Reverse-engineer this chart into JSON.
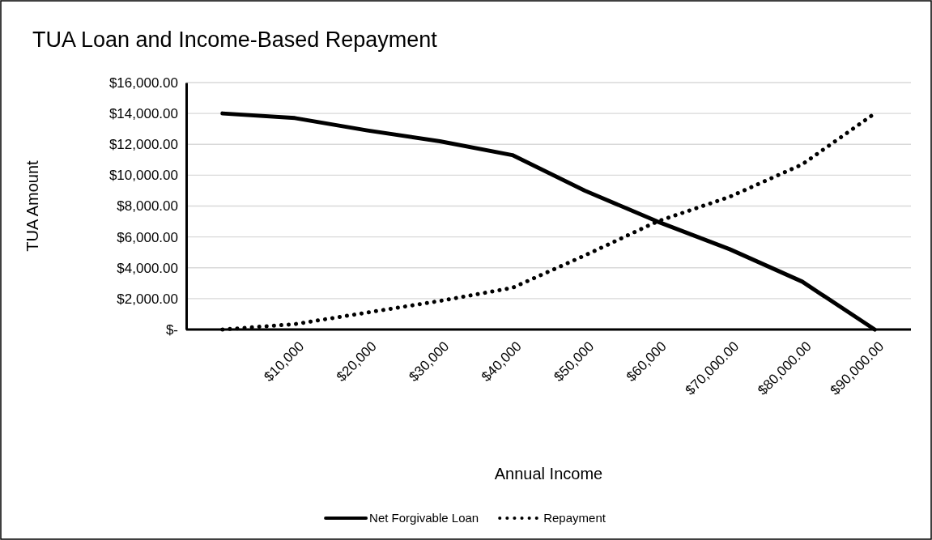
{
  "chart_data": {
    "type": "line",
    "title": "TUA Loan and Income-Based Repayment",
    "xlabel": "Annual Income",
    "ylabel": "TUA Amount",
    "categories": [
      null,
      "$10,000",
      "$20,000",
      "$30,000",
      "$40,000",
      "$50,000",
      "$60,000",
      "$70,000.00",
      "$80,000.00",
      "$90,000.00"
    ],
    "series": [
      {
        "name": "Net Forgivable Loan",
        "color": "#000000",
        "line_style": "solid",
        "values": [
          14000,
          13700,
          12900,
          12200,
          11300,
          9000,
          7000,
          5200,
          3100,
          0
        ]
      },
      {
        "name": "Repayment",
        "color": "#000000",
        "line_style": "dotted",
        "values": [
          0,
          350,
          1100,
          1850,
          2700,
          4800,
          7000,
          8600,
          10700,
          14000
        ]
      }
    ],
    "ylim": [
      0,
      16000
    ],
    "yticks": [
      {
        "value": 0,
        "label": "$-"
      },
      {
        "value": 2000,
        "label": "$2,000.00"
      },
      {
        "value": 4000,
        "label": "$4,000.00"
      },
      {
        "value": 6000,
        "label": "$6,000.00"
      },
      {
        "value": 8000,
        "label": "$8,000.00"
      },
      {
        "value": 10000,
        "label": "$10,000.00"
      },
      {
        "value": 12000,
        "label": "$12,000.00"
      },
      {
        "value": 14000,
        "label": "$14,000.00"
      },
      {
        "value": 16000,
        "label": "$16,000.00"
      }
    ],
    "grid": "y",
    "legend": "bottom",
    "marker": "none"
  }
}
